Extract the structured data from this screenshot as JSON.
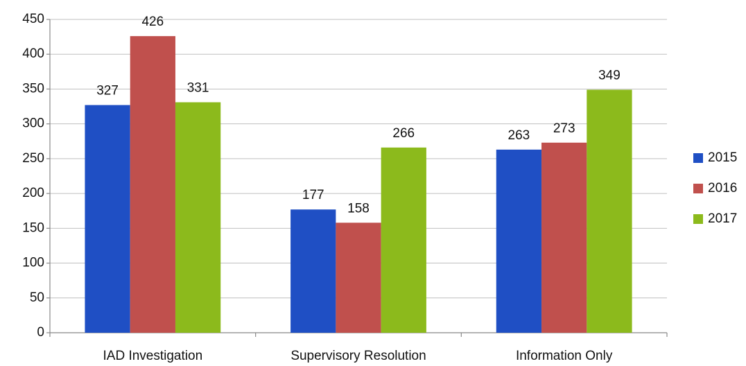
{
  "chart_data": {
    "type": "bar",
    "categories": [
      "IAD Investigation",
      "Supervisory Resolution",
      "Information Only"
    ],
    "series": [
      {
        "name": "2015",
        "color": "#1f4fc4",
        "values": [
          327,
          177,
          263
        ]
      },
      {
        "name": "2016",
        "color": "#c0504d",
        "values": [
          426,
          158,
          273
        ]
      },
      {
        "name": "2017",
        "color": "#8cba1c",
        "values": [
          331,
          266,
          349
        ]
      }
    ],
    "ylim": [
      0,
      450
    ],
    "yticks": [
      0,
      50,
      100,
      150,
      200,
      250,
      300,
      350,
      400,
      450
    ],
    "grid": true,
    "legend": "right"
  }
}
